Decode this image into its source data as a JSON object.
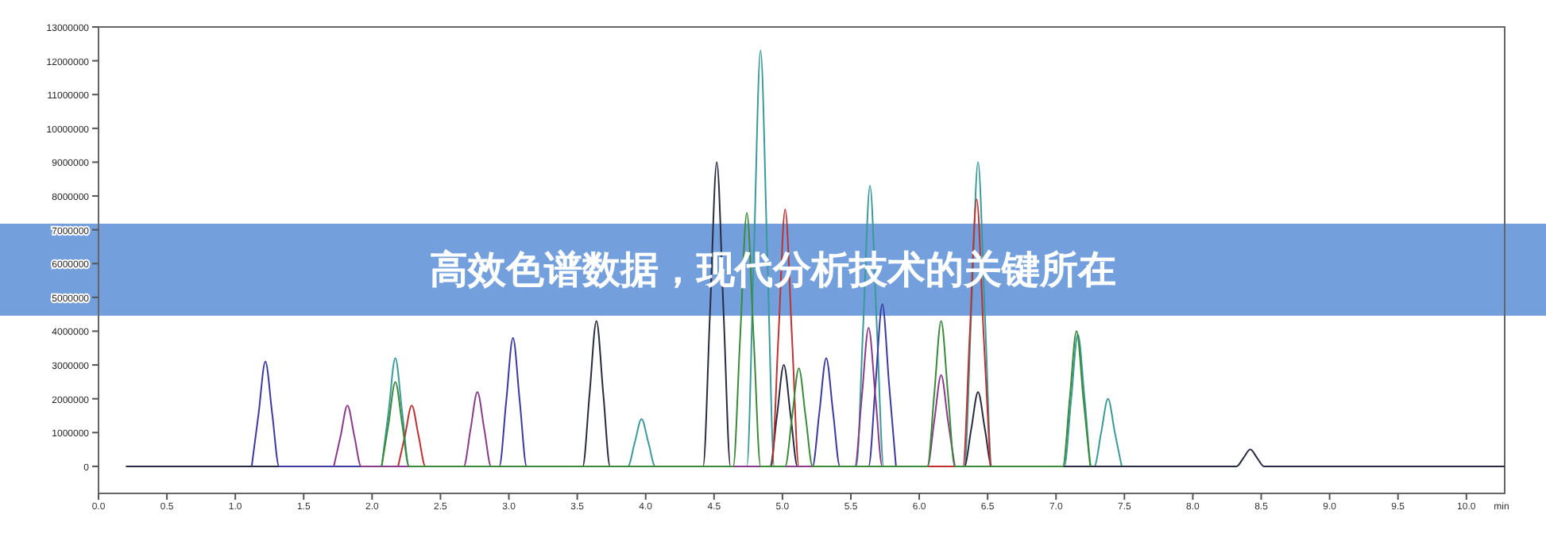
{
  "chart_data": {
    "type": "line",
    "title": "高效色谱数据，现代分析技术的关键所在",
    "xlabel": "min",
    "xlim": [
      0,
      10.28
    ],
    "ylim": [
      -800000,
      13000000
    ],
    "xticks": [
      {
        "value": 0,
        "label": "0.0"
      },
      0.5,
      {
        "value": 1,
        "label": "1.0"
      },
      1.5,
      {
        "value": 2,
        "label": "2.0"
      },
      2.5,
      {
        "value": 3,
        "label": "3.0"
      },
      3.5,
      {
        "value": 4,
        "label": "4.0"
      },
      4.5,
      {
        "value": 5,
        "label": "5.0"
      },
      5.5,
      {
        "value": 6,
        "label": "6.0"
      },
      6.5,
      {
        "value": 7,
        "label": "7.0"
      },
      7.5,
      {
        "value": 8,
        "label": "8.0"
      },
      8.5,
      {
        "value": 9,
        "label": "9.0"
      },
      9.5,
      {
        "value": 10,
        "label": "10.0"
      }
    ],
    "yticks": [
      0,
      1000000,
      2000000,
      3000000,
      4000000,
      5000000,
      6000000,
      7000000,
      8000000,
      9000000,
      10000000,
      11000000,
      12000000,
      13000000
    ],
    "series": [
      {
        "color": "#3a9a9a",
        "x": [
          2.07,
          2.12,
          2.17,
          2.22,
          2.27,
          3.87,
          3.92,
          3.97,
          4.02,
          4.07,
          4.74,
          4.79,
          4.84,
          4.89,
          4.94,
          5.54,
          5.59,
          5.64,
          5.69,
          5.74,
          6.33,
          6.38,
          6.43,
          6.48,
          6.53,
          7.06,
          7.11,
          7.16,
          7.21,
          7.26,
          7.28,
          7.33,
          7.38,
          7.43,
          7.48
        ],
        "values": [
          0,
          1600000,
          3200000,
          1600000,
          0,
          0,
          700000,
          1400000,
          700000,
          0,
          0,
          6150000,
          12300000,
          6150000,
          0,
          0,
          4150000,
          8300000,
          4150000,
          0,
          0,
          4500000,
          9000000,
          4500000,
          0,
          0,
          1950000,
          3900000,
          1950000,
          0,
          0,
          1000000,
          2000000,
          1000000,
          0
        ]
      },
      {
        "color": "#2a2a40",
        "x": [
          0.2,
          3.54,
          3.59,
          3.64,
          3.69,
          3.74,
          4.42,
          4.47,
          4.52,
          4.57,
          4.62,
          4.91,
          4.96,
          5.01,
          5.06,
          5.11,
          6.33,
          6.38,
          6.43,
          6.48,
          6.53,
          8.32,
          8.37,
          8.42,
          8.47,
          8.52,
          10.28
        ],
        "values": [
          0,
          0,
          2150000,
          4300000,
          2150000,
          0,
          0,
          4500000,
          9000000,
          4500000,
          0,
          0,
          1500000,
          3000000,
          1500000,
          0,
          0,
          1100000,
          2200000,
          1100000,
          0,
          0,
          250000,
          500000,
          250000,
          0,
          0
        ]
      },
      {
        "color": "#3a3aa0",
        "x": [
          1.12,
          1.17,
          1.22,
          1.27,
          1.32,
          2.93,
          2.98,
          3.03,
          3.08,
          3.13,
          5.22,
          5.27,
          5.32,
          5.37,
          5.42,
          5.63,
          5.68,
          5.73,
          5.78,
          5.83
        ],
        "values": [
          0,
          1550000,
          3100000,
          1550000,
          0,
          0,
          1900000,
          3800000,
          1900000,
          0,
          0,
          1600000,
          3200000,
          1600000,
          0,
          0,
          2400000,
          4800000,
          2400000,
          0
        ]
      },
      {
        "color": "#c03030",
        "x": [
          2.19,
          2.24,
          2.29,
          2.34,
          2.39,
          4.92,
          4.97,
          5.02,
          5.07,
          5.12,
          6.32,
          6.37,
          6.42,
          6.47,
          6.52
        ],
        "values": [
          0,
          900000,
          1800000,
          900000,
          0,
          0,
          3800000,
          7600000,
          3800000,
          0,
          0,
          3950000,
          7900000,
          3950000,
          0
        ]
      },
      {
        "color": "#8a3a8a",
        "x": [
          1.72,
          1.77,
          1.82,
          1.87,
          1.92,
          2.67,
          2.72,
          2.77,
          2.82,
          2.87,
          5.53,
          5.58,
          5.63,
          5.68,
          5.73,
          6.06,
          6.11,
          6.16,
          6.21,
          6.26
        ],
        "values": [
          0,
          900000,
          1800000,
          900000,
          0,
          0,
          1100000,
          2200000,
          1100000,
          0,
          0,
          2050000,
          4100000,
          2050000,
          0,
          0,
          1350000,
          2700000,
          1350000,
          0
        ]
      },
      {
        "color": "#3a8a3a",
        "x": [
          2.07,
          2.12,
          2.17,
          2.22,
          2.27,
          4.64,
          4.69,
          4.74,
          4.79,
          4.84,
          5.02,
          5.07,
          5.12,
          5.17,
          5.22,
          6.06,
          6.11,
          6.16,
          6.21,
          6.26,
          7.05,
          7.1,
          7.15,
          7.2,
          7.25
        ],
        "values": [
          0,
          1250000,
          2500000,
          1250000,
          0,
          0,
          3750000,
          7500000,
          3750000,
          0,
          0,
          1450000,
          2900000,
          1450000,
          0,
          0,
          2150000,
          4300000,
          2150000,
          0,
          0,
          2000000,
          4000000,
          2000000,
          0
        ]
      }
    ]
  }
}
